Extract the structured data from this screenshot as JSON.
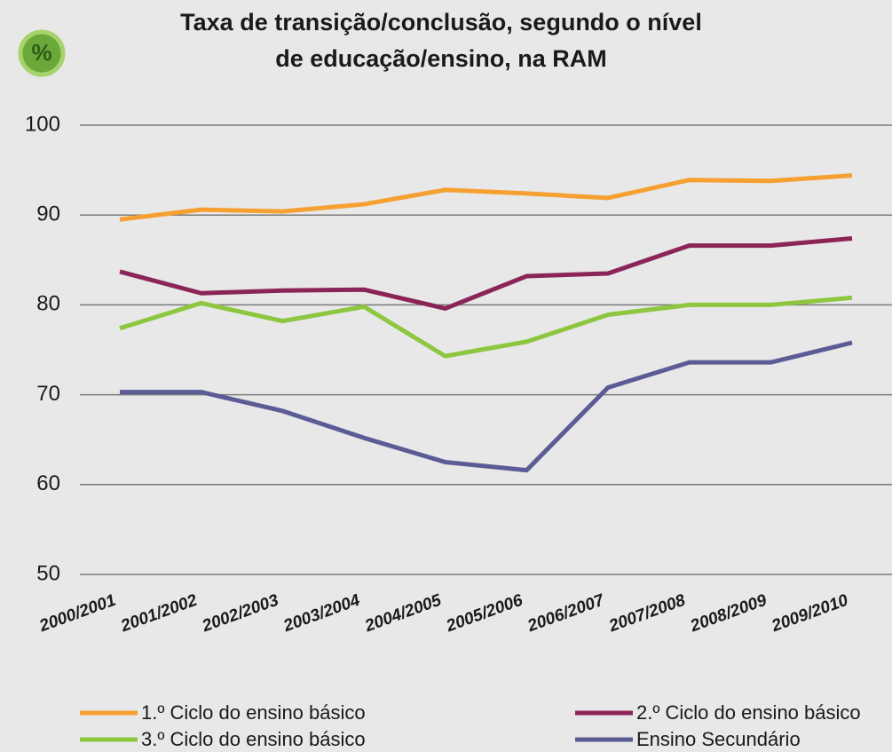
{
  "chart_data": {
    "type": "line",
    "badge": "%",
    "title": [
      "Taxa de transição/conclusão, segundo o nível",
      "de educação/ensino, na RAM"
    ],
    "categories": [
      "2000/2001",
      "2001/2002",
      "2002/2003",
      "2003/2004",
      "2004/2005",
      "2005/2006",
      "2006/2007",
      "2007/2008",
      "2008/2009",
      "2009/2010"
    ],
    "series": [
      {
        "name": "1.º Ciclo do ensino básico",
        "color": "#f5a030",
        "values": [
          89.5,
          90.6,
          90.4,
          91.2,
          92.8,
          92.4,
          91.9,
          93.9,
          93.8,
          94.4
        ]
      },
      {
        "name": "2.º Ciclo do ensino básico",
        "color": "#8b2557",
        "values": [
          83.7,
          81.3,
          81.6,
          81.7,
          79.6,
          83.2,
          83.5,
          86.6,
          86.6,
          87.4
        ]
      },
      {
        "name": "3.º Ciclo do ensino básico",
        "color": "#8dc63f",
        "values": [
          77.4,
          80.2,
          78.2,
          79.8,
          74.3,
          75.9,
          78.9,
          80.0,
          80.0,
          80.8
        ]
      },
      {
        "name": "Ensino Secundário",
        "color": "#5b5b96",
        "values": [
          70.3,
          70.3,
          68.2,
          65.2,
          62.5,
          61.6,
          70.8,
          73.6,
          73.6,
          75.8
        ]
      }
    ],
    "ylim": [
      50,
      100
    ],
    "yticks": [
      50,
      60,
      70,
      80,
      90,
      100
    ],
    "grid": true,
    "legend": "bottom"
  }
}
